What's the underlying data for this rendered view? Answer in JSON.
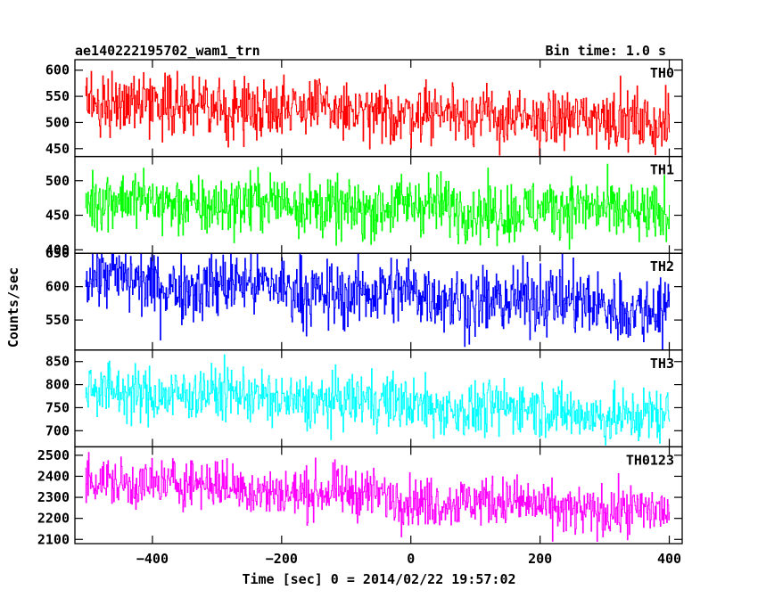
{
  "chart_data": {
    "type": "line",
    "title": "ae140222195702_wam1_trn",
    "subtitle": "Bin time: 1.0 s",
    "xlabel": "Time [sec] 0 = 2014/02/22 19:57:02",
    "ylabel": "Counts/sec",
    "xlim": [
      -520,
      420
    ],
    "data_xrange": [
      -504,
      400
    ],
    "x_ticks": [
      -400,
      -200,
      0,
      200,
      400
    ],
    "x_tick_labels": [
      "−400",
      "−200",
      "0",
      "200",
      "400"
    ],
    "grid": false,
    "panels": [
      {
        "name": "TH0",
        "color": "#ff0000",
        "ylim": [
          435,
          620
        ],
        "y_ticks": [
          450,
          500,
          550,
          600
        ],
        "y_tick_labels": [
          "450",
          "500",
          "550",
          "600"
        ],
        "mean_start": 540,
        "mean_end": 500,
        "noise": 28
      },
      {
        "name": "TH1",
        "color": "#00ff00",
        "ylim": [
          395,
          535
        ],
        "y_ticks": [
          400,
          450,
          500
        ],
        "y_tick_labels": [
          "400",
          "450",
          "500"
        ],
        "mean_start": 470,
        "mean_end": 455,
        "noise": 22
      },
      {
        "name": "TH2",
        "color": "#0000ff",
        "ylim": [
          505,
          650
        ],
        "y_ticks": [
          550,
          600,
          650
        ],
        "y_tick_labels": [
          "550",
          "600",
          "650"
        ],
        "mean_start": 612,
        "mean_end": 568,
        "noise": 26
      },
      {
        "name": "TH3",
        "color": "#00ffff",
        "ylim": [
          665,
          875
        ],
        "y_ticks": [
          700,
          750,
          800,
          850
        ],
        "y_tick_labels": [
          "700",
          "750",
          "800",
          "850"
        ],
        "mean_start": 790,
        "mean_end": 730,
        "noise": 30
      },
      {
        "name": "TH0123",
        "color": "#ff00ff",
        "ylim": [
          2080,
          2540
        ],
        "y_ticks": [
          2100,
          2200,
          2300,
          2400,
          2500
        ],
        "y_tick_labels": [
          "2100",
          "2200",
          "2300",
          "2400",
          "2500"
        ],
        "mean_start": 2390,
        "mean_end": 2220,
        "noise": 60
      }
    ]
  }
}
